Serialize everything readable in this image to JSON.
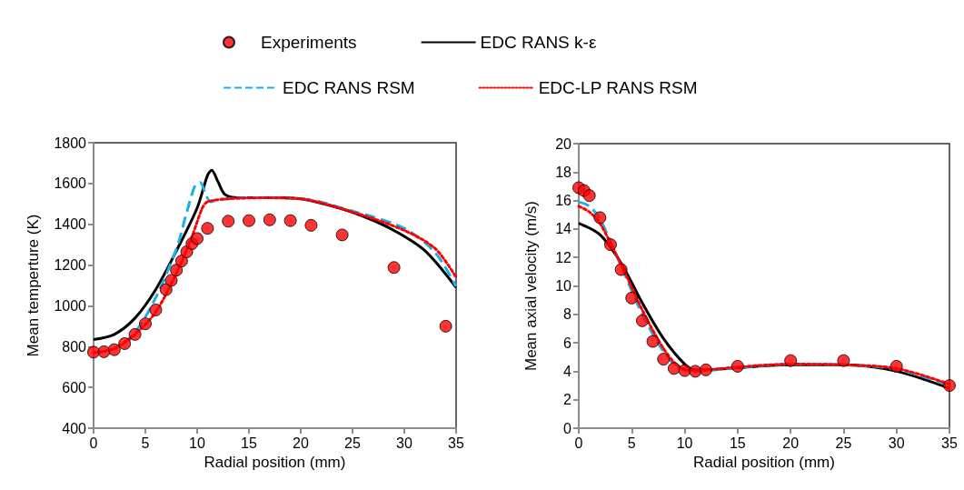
{
  "chart_data": [
    {
      "type": "line",
      "xlabel": "Radial position (mm)",
      "ylabel": "Mean temperture (K)",
      "xlim": [
        0,
        35
      ],
      "xticks": [
        0,
        5,
        10,
        15,
        20,
        25,
        30,
        35
      ],
      "ylim": [
        400,
        1800
      ],
      "yticks": [
        400,
        600,
        800,
        1000,
        1200,
        1400,
        1600,
        1800
      ],
      "grid": false,
      "legend": "top",
      "series": [
        {
          "name": "Experiments",
          "type": "scatter",
          "color": "#ff0000",
          "marker": "circle",
          "x": [
            0,
            1,
            2,
            3,
            4,
            5,
            6,
            7,
            7.5,
            8,
            8.5,
            9,
            9.5,
            10,
            11,
            13,
            15,
            17,
            19,
            21,
            24,
            29,
            34
          ],
          "values": [
            773,
            775,
            785,
            815,
            860,
            912,
            980,
            1080,
            1125,
            1175,
            1220,
            1265,
            1305,
            1330,
            1380,
            1415,
            1418,
            1422,
            1418,
            1395,
            1348,
            1188,
            900
          ]
        },
        {
          "name": "EDC RANS k-ε",
          "type": "line",
          "color": "#000000",
          "line_style": "solid",
          "marker": "none",
          "x": [
            0,
            2,
            4,
            6,
            8,
            10,
            11,
            11.4,
            12,
            12.7,
            14,
            17,
            20,
            23,
            26,
            29,
            32,
            35
          ],
          "values": [
            835,
            860,
            940,
            1080,
            1270,
            1480,
            1640,
            1665,
            1610,
            1545,
            1530,
            1530,
            1525,
            1490,
            1440,
            1370,
            1270,
            1090
          ]
        },
        {
          "name": "EDC RANS RSM",
          "type": "line",
          "color": "#1ab0e8",
          "line_style": "dashed",
          "marker": "none",
          "x": [
            0,
            2,
            4,
            6,
            8,
            9,
            9.8,
            10.3,
            10.8,
            11.3,
            12,
            15,
            20,
            25,
            30,
            33,
            35
          ],
          "values": [
            770,
            790,
            870,
            1040,
            1280,
            1460,
            1590,
            1605,
            1550,
            1510,
            1520,
            1530,
            1525,
            1465,
            1380,
            1260,
            1095
          ]
        },
        {
          "name": "EDC-LP RANS RSM",
          "type": "line",
          "color": "#ff0000",
          "line_style": "dotted",
          "marker": "none",
          "x": [
            0,
            2,
            4,
            6,
            8,
            9.5,
            10.5,
            11,
            13,
            17,
            20,
            25,
            30,
            33,
            35
          ],
          "values": [
            770,
            790,
            860,
            970,
            1160,
            1340,
            1480,
            1510,
            1525,
            1530,
            1525,
            1460,
            1370,
            1280,
            1140
          ]
        }
      ]
    },
    {
      "type": "line",
      "xlabel": "Radial position (mm)",
      "ylabel": "Mean axial velocity (m/s)",
      "xlim": [
        0,
        35
      ],
      "xticks": [
        0,
        5,
        10,
        15,
        20,
        25,
        30,
        35
      ],
      "ylim": [
        0,
        20
      ],
      "yticks": [
        0,
        2,
        4,
        6,
        8,
        10,
        12,
        14,
        16,
        18,
        20
      ],
      "grid": false,
      "legend": false,
      "series": [
        {
          "type": "scatter",
          "color": "#ff0000",
          "marker": "circle",
          "x": [
            0,
            0.5,
            1,
            2,
            3,
            4,
            5,
            6,
            7,
            8,
            9,
            10,
            11,
            12,
            15,
            20,
            25,
            30,
            35
          ],
          "values": [
            16.9,
            16.7,
            16.35,
            14.8,
            12.9,
            11.15,
            9.15,
            7.55,
            6.1,
            4.85,
            4.2,
            4.05,
            4.0,
            4.1,
            4.35,
            4.75,
            4.75,
            4.35,
            3.0
          ]
        },
        {
          "type": "line",
          "color": "#000000",
          "line_style": "solid",
          "marker": "none",
          "x": [
            0,
            2,
            4,
            6,
            8,
            10,
            11,
            12,
            15,
            20,
            25,
            30,
            35
          ],
          "values": [
            14.4,
            13.6,
            11.6,
            8.8,
            6.3,
            4.5,
            4.1,
            4.1,
            4.25,
            4.45,
            4.45,
            4.0,
            2.8
          ]
        },
        {
          "type": "line",
          "color": "#1ab0e8",
          "line_style": "dashed",
          "marker": "none",
          "x": [
            0,
            1,
            2,
            4,
            6,
            8,
            9.5,
            11,
            15,
            20,
            25,
            30,
            35
          ],
          "values": [
            15.9,
            15.6,
            14.7,
            11.4,
            8.0,
            5.4,
            4.2,
            4.0,
            4.25,
            4.5,
            4.45,
            4.15,
            3.0
          ]
        },
        {
          "type": "line",
          "color": "#ff0000",
          "line_style": "dotted",
          "marker": "none",
          "x": [
            0,
            1,
            2,
            4,
            6,
            8,
            9.5,
            11,
            15,
            20,
            25,
            30,
            35
          ],
          "values": [
            15.6,
            15.2,
            14.4,
            11.5,
            8.3,
            5.6,
            4.3,
            4.05,
            4.3,
            4.5,
            4.45,
            4.2,
            3.1
          ]
        }
      ]
    }
  ]
}
